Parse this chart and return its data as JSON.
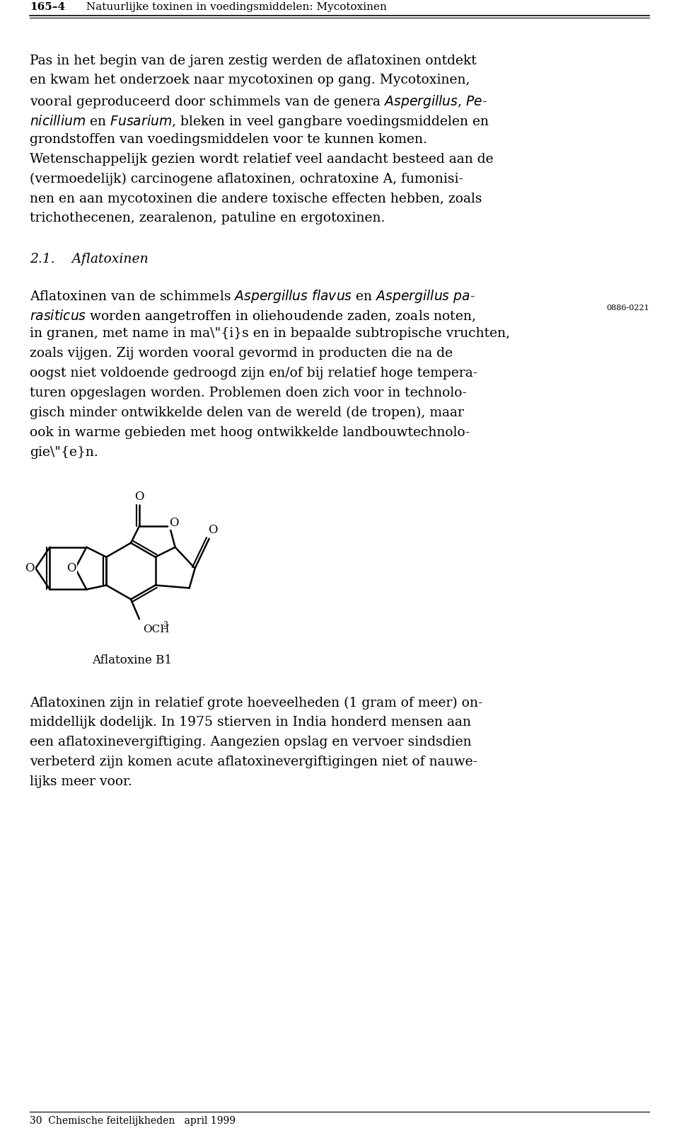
{
  "header_number": "165–4",
  "header_title": "Natuurlijke toxinen in voedingsmiddelen: Mycotoxinen",
  "paragraph1": "Pas in het begin van de jaren zestig werden de aflatoxinen ontdekt en kwam het onderzoek naar mycotoxinen op gang. Mycotoxinen, vooral geproduceerd door schimmels van de genera ­Aspergillus­, ­Penicillium­ en ­Fusarium­, bleken in veel gangbare voedingsmiddelen en grondstoffen van voedingsmiddelen voor te kunnen komen. Wetenschappelijk gezien wordt relatief veel aandacht besteed aan de (vermoedelijk) carcinogene aflatoxinen, ochratoxine A, fumonisinen en aan mycotoxinen die andere toxische effecten hebben, zoals trichothecenen, zearalenon, patuline en ergotoxinen.",
  "section_number": "2.1.",
  "section_title": "Aflatoxinen",
  "paragraph2_parts": [
    {
      "text": "Aflatoxinen van de schimmels ",
      "style": "normal"
    },
    {
      "text": "Aspergillus flavus",
      "style": "italic"
    },
    {
      "text": " en ",
      "style": "normal"
    },
    {
      "text": "Aspergillus parasiticus",
      "style": "italic"
    },
    {
      "text": " worden aangetroffen in oliehoudende zaden, zoals noten, in granen, met name in maïsen in bepaalde subtropische vruchten, zoals vijgen. Zij worden vooral gevormd in producten die na de oogst niet voldoende gedroogd zijn en/of bij relatief hoge temperaturen opgeslagen worden. Problemen doen zich voor in technologisch minder ontwikkelde delen van de wereld (de tropen), maar ook in warme gebieden met hoog ontwikkelde landbouwtechnologieën.",
      "style": "normal"
    }
  ],
  "ref_code": "0886-0221",
  "molecule_label": "Aflatoxine B1",
  "paragraph3": "Aflatoxinen zijn in relatief grote hoeveelheden (1 gram of meer) onmiddellijk dodelijk. In 1975 stierven in India honderd mensen aan een aflatoxinevergiftiging. Aangezien opslag en vervoer sindsdien verbeterd zijn komen acute aflatoxinevergiftigingen niet of nauwelijks meer voor.",
  "footer": "30  Chemische feitelijkheden   april 1999",
  "bg_color": "#ffffff",
  "text_color": "#000000",
  "header_fontsize": 11,
  "body_fontsize": 13.5,
  "section_fontsize": 13.5,
  "footer_fontsize": 10
}
